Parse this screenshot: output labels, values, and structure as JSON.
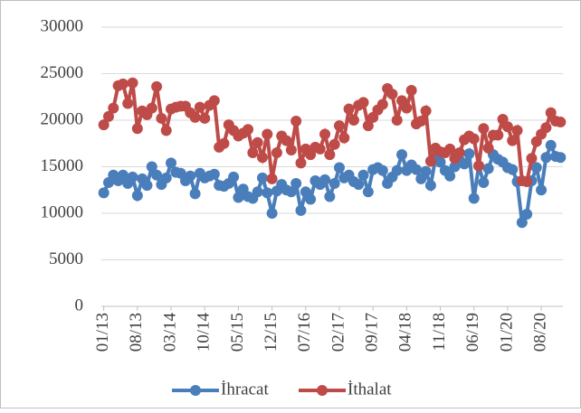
{
  "chart_data": {
    "type": "line",
    "categories": [
      "01/13",
      null,
      null,
      null,
      null,
      null,
      null,
      "08/13",
      null,
      null,
      null,
      null,
      null,
      null,
      "03/14",
      null,
      null,
      null,
      null,
      null,
      null,
      "10/14",
      null,
      null,
      null,
      null,
      null,
      null,
      "05/15",
      null,
      null,
      null,
      null,
      null,
      null,
      "12/15",
      null,
      null,
      null,
      null,
      null,
      null,
      "07/16",
      null,
      null,
      null,
      null,
      null,
      null,
      "02/17",
      null,
      null,
      null,
      null,
      null,
      null,
      "09/17",
      null,
      null,
      null,
      null,
      null,
      null,
      "04/18",
      null,
      null,
      null,
      null,
      null,
      null,
      "11/18",
      null,
      null,
      null,
      null,
      null,
      null,
      "06/19",
      null,
      null,
      null,
      null,
      null,
      null,
      "01/20",
      null,
      null,
      null,
      null,
      null,
      null,
      "08/20",
      null,
      null,
      null,
      null
    ],
    "series": [
      {
        "name": "İhracat",
        "color": "#4a7ebb",
        "values": [
          12200,
          13300,
          14100,
          13500,
          14100,
          13200,
          13900,
          11900,
          13700,
          13000,
          15000,
          14100,
          13100,
          13800,
          15400,
          14400,
          14300,
          13500,
          14000,
          12100,
          14300,
          13800,
          14000,
          14200,
          13000,
          12900,
          13200,
          13900,
          11700,
          12600,
          11800,
          11600,
          12300,
          13800,
          12200,
          10000,
          12400,
          13100,
          12500,
          12300,
          13200,
          10300,
          12300,
          11500,
          13500,
          13100,
          13600,
          11800,
          13200,
          14900,
          13800,
          14100,
          13400,
          13100,
          14100,
          12300,
          14700,
          14900,
          14600,
          13200,
          13900,
          14600,
          16300,
          14600,
          15200,
          14700,
          13700,
          14500,
          13000,
          15900,
          15500,
          14600,
          14000,
          15000,
          15700,
          15300,
          16400,
          11600,
          15100,
          13300,
          14800,
          16300,
          15800,
          15500,
          14900,
          14700,
          13400,
          9000,
          9900,
          13500,
          14900,
          12500,
          16000,
          17300,
          16100,
          16000
        ]
      },
      {
        "name": "İthalat",
        "color": "#be4b48",
        "values": [
          19500,
          20400,
          21300,
          23700,
          23900,
          21800,
          24000,
          19100,
          21000,
          20600,
          21300,
          23600,
          20200,
          18900,
          21200,
          21400,
          21500,
          21500,
          20800,
          20300,
          21400,
          20200,
          21600,
          22100,
          17100,
          17500,
          19500,
          18900,
          18300,
          18600,
          19000,
          16500,
          17600,
          16000,
          18500,
          13700,
          16500,
          18300,
          17800,
          16800,
          19900,
          15400,
          16900,
          16300,
          17100,
          16900,
          18500,
          16300,
          17400,
          19400,
          18100,
          21200,
          20000,
          21600,
          21900,
          19400,
          20300,
          21100,
          21700,
          23400,
          22800,
          20000,
          22100,
          21300,
          23200,
          19600,
          19900,
          21000,
          15600,
          17000,
          16600,
          16500,
          16900,
          15900,
          16500,
          17900,
          18300,
          18000,
          15100,
          19100,
          17000,
          18400,
          18400,
          20100,
          19300,
          17800,
          18900,
          13500,
          13400,
          15900,
          17700,
          18500,
          19200,
          20800,
          19900,
          19800
        ]
      }
    ],
    "ylim": [
      0,
      30000
    ],
    "yticks": [
      0,
      5000,
      10000,
      15000,
      20000,
      25000,
      30000
    ],
    "grid": true,
    "legend": "bottom"
  }
}
